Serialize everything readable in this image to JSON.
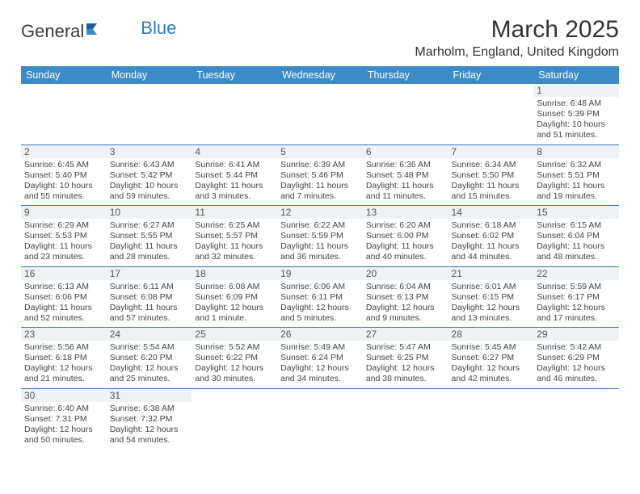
{
  "brand": {
    "text1": "General",
    "text2": "Blue"
  },
  "title": "March 2025",
  "location": "Marholm, England, United Kingdom",
  "colors": {
    "header_bg": "#3b8bc9",
    "header_text": "#ffffff",
    "border": "#2f7bbf",
    "daynum_bg": "#eef2f5",
    "text": "#333333"
  },
  "weekdays": [
    "Sunday",
    "Monday",
    "Tuesday",
    "Wednesday",
    "Thursday",
    "Friday",
    "Saturday"
  ],
  "weeks": [
    [
      null,
      null,
      null,
      null,
      null,
      null,
      {
        "n": "1",
        "sr": "Sunrise: 6:48 AM",
        "ss": "Sunset: 5:39 PM",
        "dl": "Daylight: 10 hours and 51 minutes."
      }
    ],
    [
      {
        "n": "2",
        "sr": "Sunrise: 6:45 AM",
        "ss": "Sunset: 5:40 PM",
        "dl": "Daylight: 10 hours and 55 minutes."
      },
      {
        "n": "3",
        "sr": "Sunrise: 6:43 AM",
        "ss": "Sunset: 5:42 PM",
        "dl": "Daylight: 10 hours and 59 minutes."
      },
      {
        "n": "4",
        "sr": "Sunrise: 6:41 AM",
        "ss": "Sunset: 5:44 PM",
        "dl": "Daylight: 11 hours and 3 minutes."
      },
      {
        "n": "5",
        "sr": "Sunrise: 6:39 AM",
        "ss": "Sunset: 5:46 PM",
        "dl": "Daylight: 11 hours and 7 minutes."
      },
      {
        "n": "6",
        "sr": "Sunrise: 6:36 AM",
        "ss": "Sunset: 5:48 PM",
        "dl": "Daylight: 11 hours and 11 minutes."
      },
      {
        "n": "7",
        "sr": "Sunrise: 6:34 AM",
        "ss": "Sunset: 5:50 PM",
        "dl": "Daylight: 11 hours and 15 minutes."
      },
      {
        "n": "8",
        "sr": "Sunrise: 6:32 AM",
        "ss": "Sunset: 5:51 PM",
        "dl": "Daylight: 11 hours and 19 minutes."
      }
    ],
    [
      {
        "n": "9",
        "sr": "Sunrise: 6:29 AM",
        "ss": "Sunset: 5:53 PM",
        "dl": "Daylight: 11 hours and 23 minutes."
      },
      {
        "n": "10",
        "sr": "Sunrise: 6:27 AM",
        "ss": "Sunset: 5:55 PM",
        "dl": "Daylight: 11 hours and 28 minutes."
      },
      {
        "n": "11",
        "sr": "Sunrise: 6:25 AM",
        "ss": "Sunset: 5:57 PM",
        "dl": "Daylight: 11 hours and 32 minutes."
      },
      {
        "n": "12",
        "sr": "Sunrise: 6:22 AM",
        "ss": "Sunset: 5:59 PM",
        "dl": "Daylight: 11 hours and 36 minutes."
      },
      {
        "n": "13",
        "sr": "Sunrise: 6:20 AM",
        "ss": "Sunset: 6:00 PM",
        "dl": "Daylight: 11 hours and 40 minutes."
      },
      {
        "n": "14",
        "sr": "Sunrise: 6:18 AM",
        "ss": "Sunset: 6:02 PM",
        "dl": "Daylight: 11 hours and 44 minutes."
      },
      {
        "n": "15",
        "sr": "Sunrise: 6:15 AM",
        "ss": "Sunset: 6:04 PM",
        "dl": "Daylight: 11 hours and 48 minutes."
      }
    ],
    [
      {
        "n": "16",
        "sr": "Sunrise: 6:13 AM",
        "ss": "Sunset: 6:06 PM",
        "dl": "Daylight: 11 hours and 52 minutes."
      },
      {
        "n": "17",
        "sr": "Sunrise: 6:11 AM",
        "ss": "Sunset: 6:08 PM",
        "dl": "Daylight: 11 hours and 57 minutes."
      },
      {
        "n": "18",
        "sr": "Sunrise: 6:08 AM",
        "ss": "Sunset: 6:09 PM",
        "dl": "Daylight: 12 hours and 1 minute."
      },
      {
        "n": "19",
        "sr": "Sunrise: 6:06 AM",
        "ss": "Sunset: 6:11 PM",
        "dl": "Daylight: 12 hours and 5 minutes."
      },
      {
        "n": "20",
        "sr": "Sunrise: 6:04 AM",
        "ss": "Sunset: 6:13 PM",
        "dl": "Daylight: 12 hours and 9 minutes."
      },
      {
        "n": "21",
        "sr": "Sunrise: 6:01 AM",
        "ss": "Sunset: 6:15 PM",
        "dl": "Daylight: 12 hours and 13 minutes."
      },
      {
        "n": "22",
        "sr": "Sunrise: 5:59 AM",
        "ss": "Sunset: 6:17 PM",
        "dl": "Daylight: 12 hours and 17 minutes."
      }
    ],
    [
      {
        "n": "23",
        "sr": "Sunrise: 5:56 AM",
        "ss": "Sunset: 6:18 PM",
        "dl": "Daylight: 12 hours and 21 minutes."
      },
      {
        "n": "24",
        "sr": "Sunrise: 5:54 AM",
        "ss": "Sunset: 6:20 PM",
        "dl": "Daylight: 12 hours and 25 minutes."
      },
      {
        "n": "25",
        "sr": "Sunrise: 5:52 AM",
        "ss": "Sunset: 6:22 PM",
        "dl": "Daylight: 12 hours and 30 minutes."
      },
      {
        "n": "26",
        "sr": "Sunrise: 5:49 AM",
        "ss": "Sunset: 6:24 PM",
        "dl": "Daylight: 12 hours and 34 minutes."
      },
      {
        "n": "27",
        "sr": "Sunrise: 5:47 AM",
        "ss": "Sunset: 6:25 PM",
        "dl": "Daylight: 12 hours and 38 minutes."
      },
      {
        "n": "28",
        "sr": "Sunrise: 5:45 AM",
        "ss": "Sunset: 6:27 PM",
        "dl": "Daylight: 12 hours and 42 minutes."
      },
      {
        "n": "29",
        "sr": "Sunrise: 5:42 AM",
        "ss": "Sunset: 6:29 PM",
        "dl": "Daylight: 12 hours and 46 minutes."
      }
    ],
    [
      {
        "n": "30",
        "sr": "Sunrise: 6:40 AM",
        "ss": "Sunset: 7:31 PM",
        "dl": "Daylight: 12 hours and 50 minutes."
      },
      {
        "n": "31",
        "sr": "Sunrise: 6:38 AM",
        "ss": "Sunset: 7:32 PM",
        "dl": "Daylight: 12 hours and 54 minutes."
      },
      null,
      null,
      null,
      null,
      null
    ]
  ]
}
